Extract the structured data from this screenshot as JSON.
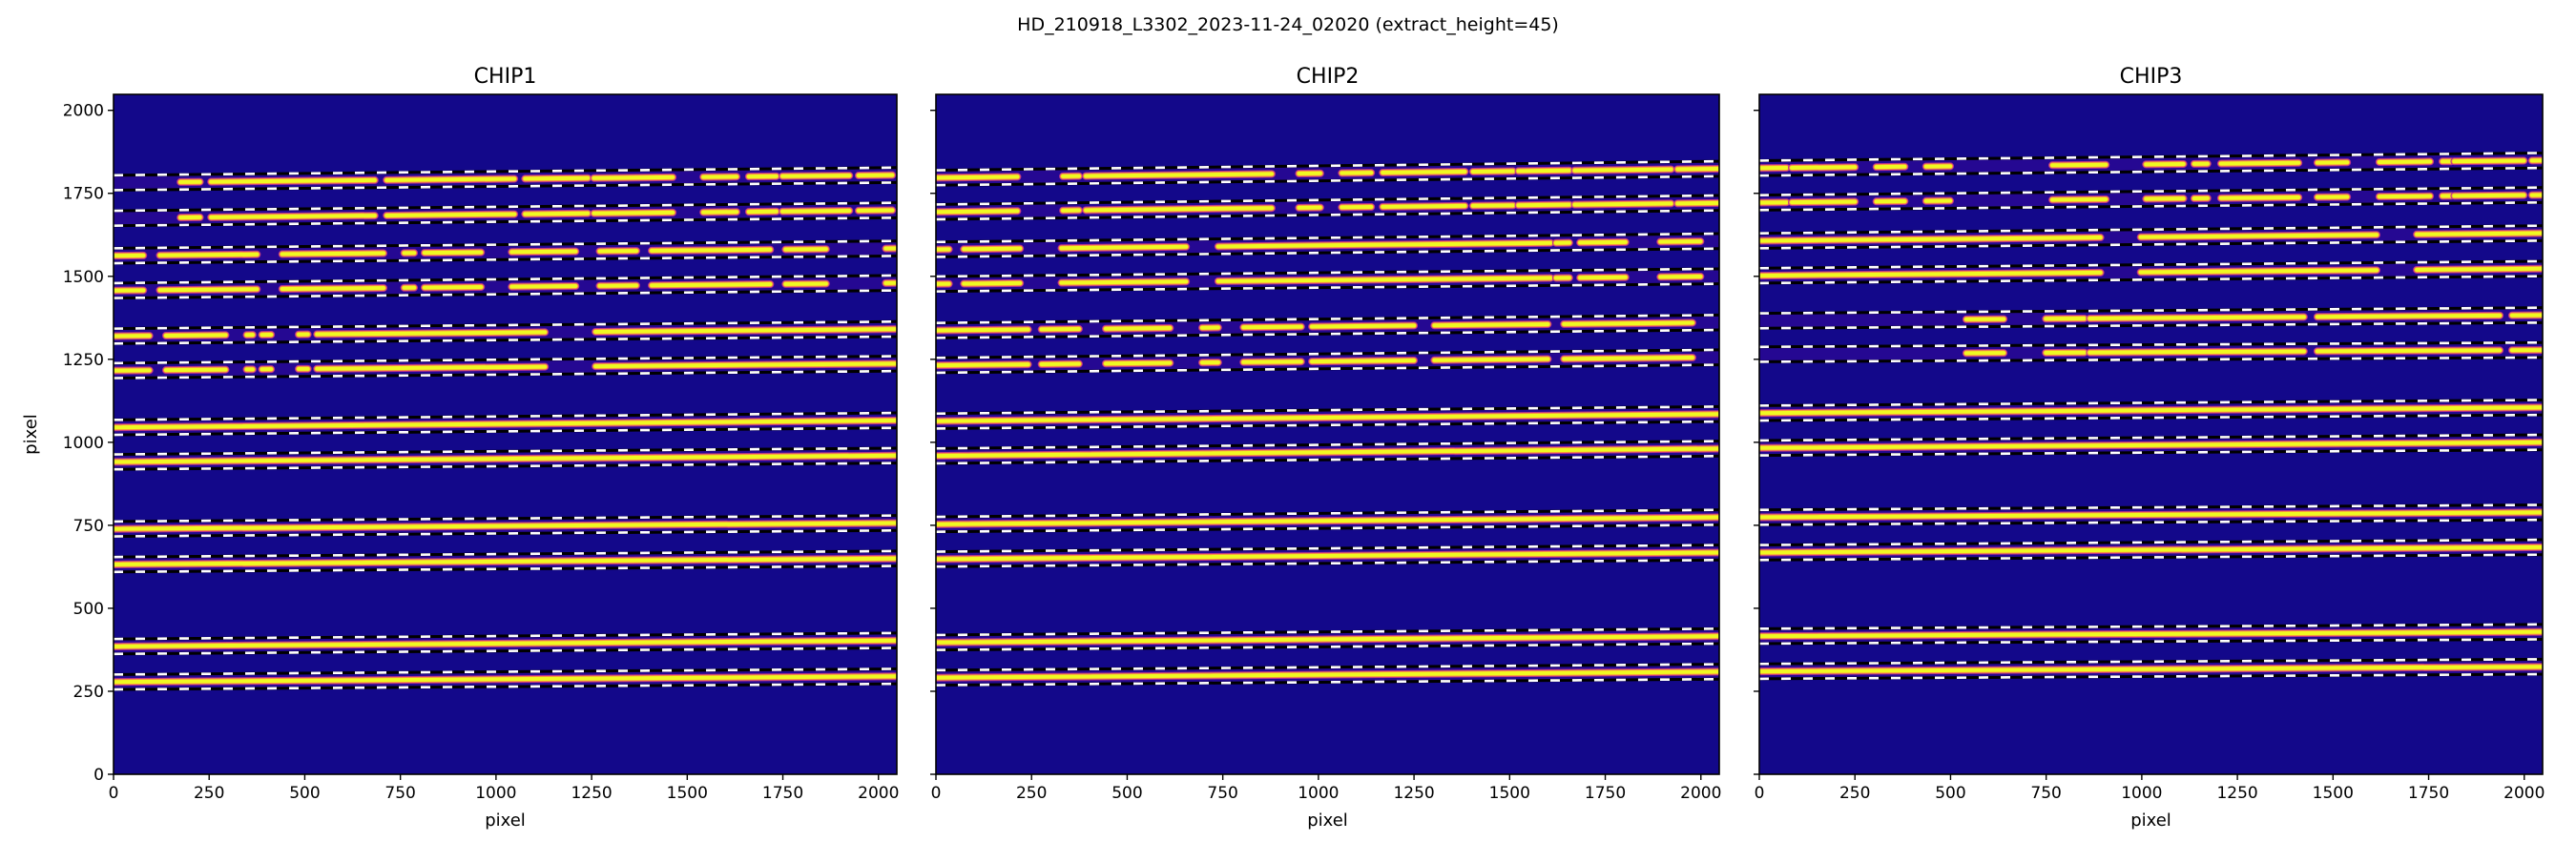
{
  "figure": {
    "suptitle": "HD_210918_L3302_2023-11-24_02020  (extract_height=45)",
    "extract_height": 45
  },
  "chart_data": [
    {
      "type": "heatmap",
      "title": "CHIP1",
      "xlabel": "pixel",
      "ylabel": "pixel",
      "xlim": [
        0,
        2048
      ],
      "ylim": [
        0,
        2048
      ],
      "xticks": [
        "0",
        "250",
        "500",
        "750",
        "1000",
        "1250",
        "1500",
        "1750",
        "2000"
      ],
      "yticks": [
        "0",
        "250",
        "500",
        "750",
        "1000",
        "1250",
        "1500",
        "1750",
        "2000"
      ],
      "colormap": "plasma",
      "traces": [
        {
          "y_left": 1782,
          "y_right": 1805,
          "segments": [
            [
              175,
              226
            ],
            [
              255,
              683
            ],
            [
              714,
              1048
            ],
            [
              1076,
              1240
            ],
            [
              1256,
              1462
            ],
            [
              1542,
              1629
            ],
            [
              1661,
              1733
            ],
            [
              1749,
              1924
            ],
            [
              1948,
              2036
            ]
          ]
        },
        {
          "y_left": 1675,
          "y_right": 1699,
          "segments": [
            [
              175,
              226
            ],
            [
              255,
              683
            ],
            [
              714,
              1048
            ],
            [
              1076,
              1240
            ],
            [
              1256,
              1462
            ],
            [
              1542,
              1629
            ],
            [
              1661,
              1733
            ],
            [
              1749,
              1924
            ],
            [
              1948,
              2036
            ]
          ]
        },
        {
          "y_left": 1562,
          "y_right": 1584,
          "segments": [
            [
              3,
              78
            ],
            [
              121,
              375
            ],
            [
              441,
              706
            ],
            [
              760,
              786
            ],
            [
              813,
              961
            ],
            [
              1041,
              1208
            ],
            [
              1271,
              1367
            ],
            [
              1407,
              1717
            ],
            [
              1757,
              1863
            ],
            [
              2019,
              2043
            ]
          ]
        },
        {
          "y_left": 1457,
          "y_right": 1480,
          "segments": [
            [
              3,
              78
            ],
            [
              121,
              375
            ],
            [
              441,
              706
            ],
            [
              760,
              786
            ],
            [
              813,
              961
            ],
            [
              1041,
              1208
            ],
            [
              1271,
              1367
            ],
            [
              1407,
              1717
            ],
            [
              1757,
              1863
            ],
            [
              2019,
              2043
            ]
          ]
        },
        {
          "y_left": 1320,
          "y_right": 1341,
          "segments": [
            [
              3,
              94
            ],
            [
              137,
              293
            ],
            [
              348,
              364
            ],
            [
              388,
              412
            ],
            [
              484,
              508
            ],
            [
              532,
              1128
            ],
            [
              1260,
              2043
            ]
          ]
        },
        {
          "y_left": 1216,
          "y_right": 1237,
          "segments": [
            [
              3,
              94
            ],
            [
              137,
              293
            ],
            [
              348,
              364
            ],
            [
              388,
              412
            ],
            [
              484,
              508
            ],
            [
              532,
              1128
            ],
            [
              1260,
              2043
            ]
          ]
        },
        {
          "y_left": 1045,
          "y_right": 1066,
          "segments": [
            [
              0,
              2048
            ]
          ]
        },
        {
          "y_left": 941,
          "y_right": 960,
          "segments": [
            [
              0,
              2048
            ]
          ]
        },
        {
          "y_left": 739,
          "y_right": 757,
          "segments": [
            [
              0,
              2048
            ]
          ]
        },
        {
          "y_left": 632,
          "y_right": 650,
          "segments": [
            [
              0,
              2048
            ]
          ]
        },
        {
          "y_left": 385,
          "y_right": 403,
          "segments": [
            [
              0,
              2048
            ]
          ]
        },
        {
          "y_left": 278,
          "y_right": 295,
          "segments": [
            [
              0,
              2048
            ]
          ]
        }
      ]
    },
    {
      "type": "heatmap",
      "title": "CHIP2",
      "xlabel": "pixel",
      "ylabel": "",
      "xlim": [
        0,
        2048
      ],
      "ylim": [
        0,
        2048
      ],
      "xticks": [
        "0",
        "250",
        "500",
        "750",
        "1000",
        "1250",
        "1500",
        "1750",
        "2000"
      ],
      "yticks": [],
      "colormap": "plasma",
      "traces": [
        {
          "y_left": 1797,
          "y_right": 1824,
          "segments": [
            [
              3,
              213
            ],
            [
              332,
              374
            ],
            [
              392,
              878
            ],
            [
              949,
              1005
            ],
            [
              1061,
              1138
            ],
            [
              1168,
              1383
            ],
            [
              1404,
              1509
            ],
            [
              1523,
              1656
            ],
            [
              1670,
              1922
            ],
            [
              1939,
              2048
            ]
          ]
        },
        {
          "y_left": 1694,
          "y_right": 1721,
          "segments": [
            [
              3,
              213
            ],
            [
              332,
              374
            ],
            [
              392,
              878
            ],
            [
              949,
              1005
            ],
            [
              1061,
              1138
            ],
            [
              1168,
              1383
            ],
            [
              1404,
              1509
            ],
            [
              1523,
              1656
            ],
            [
              1670,
              1922
            ],
            [
              1939,
              2048
            ]
          ]
        },
        {
          "y_left": 1581,
          "y_right": 1606,
          "segments": [
            [
              3,
              34
            ],
            [
              73,
              220
            ],
            [
              328,
              654
            ],
            [
              738,
              1607
            ],
            [
              1621,
              1656
            ],
            [
              1684,
              1803
            ],
            [
              1894,
              1999
            ]
          ]
        },
        {
          "y_left": 1477,
          "y_right": 1500,
          "segments": [
            [
              3,
              34
            ],
            [
              73,
              220
            ],
            [
              328,
              654
            ],
            [
              738,
              1607
            ],
            [
              1621,
              1656
            ],
            [
              1684,
              1803
            ],
            [
              1894,
              1999
            ]
          ]
        },
        {
          "y_left": 1337,
          "y_right": 1361,
          "segments": [
            [
              3,
              241
            ],
            [
              276,
              374
            ],
            [
              444,
              612
            ],
            [
              696,
              738
            ],
            [
              804,
              955
            ],
            [
              983,
              1250
            ],
            [
              1303,
              1600
            ],
            [
              1642,
              1978
            ]
          ]
        },
        {
          "y_left": 1232,
          "y_right": 1256,
          "segments": [
            [
              3,
              241
            ],
            [
              276,
              374
            ],
            [
              444,
              612
            ],
            [
              696,
              738
            ],
            [
              804,
              955
            ],
            [
              983,
              1250
            ],
            [
              1303,
              1600
            ],
            [
              1642,
              1978
            ]
          ]
        },
        {
          "y_left": 1064,
          "y_right": 1085,
          "segments": [
            [
              0,
              2048
            ]
          ]
        },
        {
          "y_left": 959,
          "y_right": 981,
          "segments": [
            [
              0,
              2048
            ]
          ]
        },
        {
          "y_left": 753,
          "y_right": 774,
          "segments": [
            [
              0,
              2048
            ]
          ]
        },
        {
          "y_left": 648,
          "y_right": 668,
          "segments": [
            [
              0,
              2048
            ]
          ]
        },
        {
          "y_left": 397,
          "y_right": 416,
          "segments": [
            [
              0,
              2048
            ]
          ]
        },
        {
          "y_left": 291,
          "y_right": 309,
          "segments": [
            [
              0,
              2048
            ]
          ]
        }
      ]
    },
    {
      "type": "heatmap",
      "title": "CHIP3",
      "xlabel": "pixel",
      "ylabel": "",
      "xlim": [
        0,
        2048
      ],
      "ylim": [
        0,
        2048
      ],
      "xticks": [
        "0",
        "250",
        "500",
        "750",
        "1000",
        "1250",
        "1500",
        "1750",
        "2000"
      ],
      "yticks": [],
      "colormap": "plasma",
      "traces": [
        {
          "y_left": 1826,
          "y_right": 1849,
          "segments": [
            [
              3,
              71
            ],
            [
              85,
              250
            ],
            [
              306,
              380
            ],
            [
              436,
              499
            ],
            [
              766,
              906
            ],
            [
              1011,
              1109
            ],
            [
              1137,
              1172
            ],
            [
              1207,
              1410
            ],
            [
              1459,
              1537
            ],
            [
              1621,
              1754
            ],
            [
              1786,
              1810
            ],
            [
              1817,
              1999
            ],
            [
              2020,
              2048
            ]
          ]
        },
        {
          "y_left": 1722,
          "y_right": 1745,
          "segments": [
            [
              3,
              71
            ],
            [
              85,
              250
            ],
            [
              306,
              380
            ],
            [
              436,
              499
            ],
            [
              766,
              906
            ],
            [
              1011,
              1109
            ],
            [
              1137,
              1172
            ],
            [
              1207,
              1410
            ],
            [
              1459,
              1537
            ],
            [
              1621,
              1754
            ],
            [
              1786,
              1810
            ],
            [
              1817,
              1999
            ],
            [
              2020,
              2048
            ]
          ]
        },
        {
          "y_left": 1607,
          "y_right": 1630,
          "segments": [
            [
              3,
              892
            ],
            [
              997,
              1614
            ],
            [
              1719,
              2048
            ]
          ]
        },
        {
          "y_left": 1502,
          "y_right": 1523,
          "segments": [
            [
              3,
              892
            ],
            [
              997,
              1614
            ],
            [
              1719,
              2048
            ]
          ]
        },
        {
          "y_left": 1366,
          "y_right": 1383,
          "segments": [
            [
              541,
              639
            ],
            [
              749,
              850
            ],
            [
              864,
              1424
            ],
            [
              1459,
              1936
            ],
            [
              1968,
              2048
            ]
          ]
        },
        {
          "y_left": 1265,
          "y_right": 1278,
          "segments": [
            [
              541,
              639
            ],
            [
              749,
              850
            ],
            [
              864,
              1424
            ],
            [
              1459,
              1936
            ],
            [
              1968,
              2048
            ]
          ]
        },
        {
          "y_left": 1088,
          "y_right": 1105,
          "segments": [
            [
              0,
              2048
            ]
          ]
        },
        {
          "y_left": 983,
          "y_right": 1000,
          "segments": [
            [
              0,
              2048
            ]
          ]
        },
        {
          "y_left": 774,
          "y_right": 789,
          "segments": [
            [
              0,
              2048
            ]
          ]
        },
        {
          "y_left": 668,
          "y_right": 684,
          "segments": [
            [
              0,
              2048
            ]
          ]
        },
        {
          "y_left": 416,
          "y_right": 429,
          "segments": [
            [
              0,
              2048
            ]
          ]
        },
        {
          "y_left": 310,
          "y_right": 324,
          "segments": [
            [
              0,
              2048
            ]
          ]
        }
      ]
    }
  ],
  "colors": {
    "background": "#13088a",
    "glow": "#3b0a9c",
    "trace_edge": "#b83289",
    "trace_mid": "#f89540",
    "trace_core": "#f0f921",
    "dash": "#ffffff"
  }
}
